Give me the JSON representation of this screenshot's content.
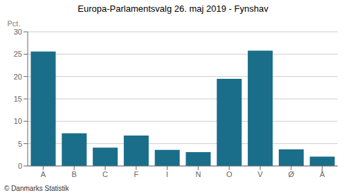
{
  "chart_data": {
    "type": "bar",
    "title": "Europa-Parlamentsvalg 26. maj 2019 - Fynshav",
    "categories": [
      "A",
      "B",
      "C",
      "F",
      "I",
      "N",
      "O",
      "V",
      "Ø",
      "Å"
    ],
    "values": [
      25.6,
      7.3,
      4.1,
      6.8,
      3.6,
      3.1,
      19.5,
      25.8,
      3.7,
      2.1
    ],
    "color": "#1a6e8a",
    "ylabel": "Pct.",
    "ylim": [
      0,
      30
    ],
    "yticks": [
      0,
      5,
      10,
      15,
      20,
      25,
      30
    ],
    "grid": true,
    "annotations": [
      "© Danmarks Statistik"
    ]
  }
}
